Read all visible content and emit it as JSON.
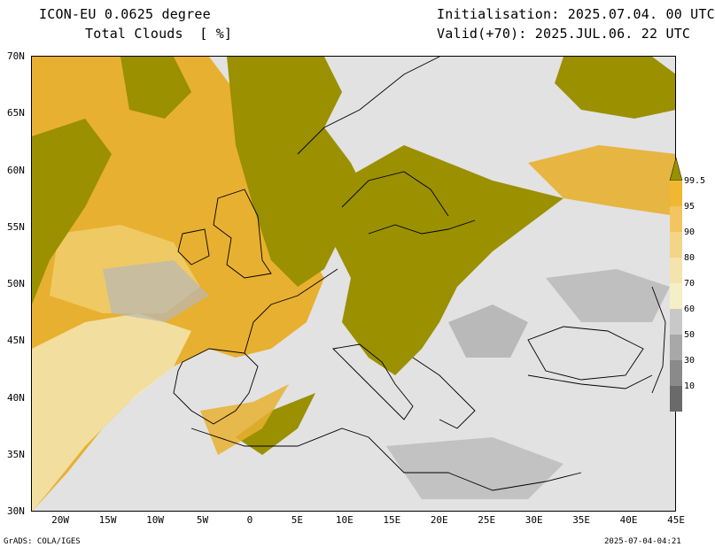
{
  "header": {
    "model": "ICON-EU 0.0625 degree",
    "variable": "Total Clouds  [ %]",
    "init": "Initialisation: 2025.07.04. 00 UTC",
    "valid": "Valid(+70): 2025.JUL.06. 22 UTC"
  },
  "map": {
    "lat_labels": [
      "70N",
      "65N",
      "60N",
      "55N",
      "50N",
      "45N",
      "40N",
      "35N",
      "30N"
    ],
    "lon_labels": [
      "20W",
      "15W",
      "10W",
      "5W",
      "0",
      "5E",
      "10E",
      "15E",
      "20E",
      "25E",
      "30E",
      "35E",
      "40E",
      "45E"
    ],
    "extent": {
      "lon_min": -23,
      "lon_max": 45,
      "lat_min": 30,
      "lat_max": 70
    }
  },
  "colorbar": {
    "levels": [
      "99.5",
      "95",
      "90",
      "80",
      "70",
      "60",
      "50",
      "30",
      "10"
    ],
    "colors": [
      "#f0b830",
      "#f2c560",
      "#f4d486",
      "#f5e3ae",
      "#f5efc6",
      "#c8c8c8",
      "#a8a8a8",
      "#8a8a8a",
      "#6a6a6a"
    ],
    "top_color": "#9a9000"
  },
  "palette": {
    "overcast": "#9a9000",
    "high": "#e8b030",
    "mid": "#f0d070",
    "light": "#f3e7b3",
    "grey_light": "#d8d8d8",
    "grey_mid": "#a8a8a8",
    "clear": "#e2e2e2"
  },
  "footer": {
    "left": "GrADS: COLA/IGES",
    "right": "2025-07-04-04:21"
  }
}
